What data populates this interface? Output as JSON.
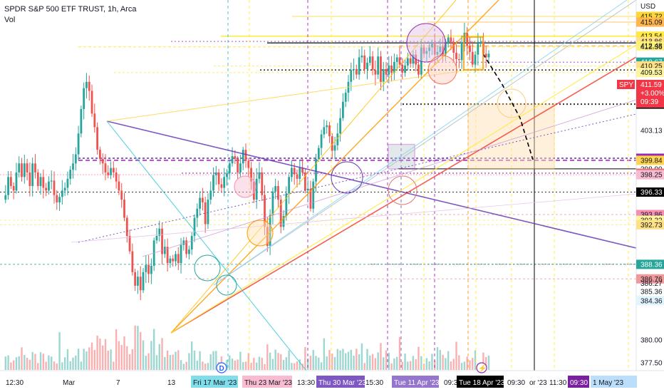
{
  "header": {
    "title": "SPDR S&P 500 ETF TRUST, 1h, Arca",
    "sub": "Vol"
  },
  "currency": "USD",
  "last_price": {
    "ticker": "SPY",
    "price": "411.59",
    "change": "+3.00%",
    "countdown": "09:39",
    "color": "#f23645"
  },
  "price_scale": {
    "ticks": [
      {
        "text": "415.72",
        "bg": "#fdd835",
        "color": "#131722"
      },
      {
        "text": "415.09",
        "bg": "#ffb74d",
        "color": "#131722"
      },
      {
        "text": "413.54",
        "bg": "#ffeb3b",
        "color": "#131722"
      },
      {
        "text": "412.96",
        "bg": "#ffe082",
        "color": "#131722"
      },
      {
        "text": "412.79",
        "bg": "#ffffff",
        "color": "#131722"
      },
      {
        "text": "412.48",
        "bg": "#fff176",
        "color": "#131722"
      },
      {
        "text": "412.36",
        "bg": "#ffffff",
        "color": "#131722"
      },
      {
        "text": "410.67",
        "bg": "#26a69a",
        "color": "#ffffff"
      },
      {
        "text": "410.25",
        "bg": "#ffe082",
        "color": "#131722"
      },
      {
        "text": "409.81",
        "bg": "#ffffff",
        "color": "#131722"
      },
      {
        "text": "409.53",
        "bg": "#fff59d",
        "color": "#131722"
      },
      {
        "text": "406.23",
        "bg": "#e1bee7",
        "color": "#131722"
      },
      {
        "text": "406.04",
        "bg": "#000000",
        "color": "#ffffff"
      },
      {
        "text": "403.13",
        "bg": "#ffffff",
        "color": "#131722"
      },
      {
        "text": "400.07",
        "bg": "#9c27b0",
        "color": "#ffffff"
      },
      {
        "text": "399.84",
        "bg": "#ffd54f",
        "color": "#131722"
      },
      {
        "text": "398.90",
        "bg": "#ffffff",
        "color": "#131722"
      },
      {
        "text": "398.42",
        "bg": "#e57373",
        "color": "#ffffff"
      },
      {
        "text": "398.25",
        "bg": "#f8bbd0",
        "color": "#131722"
      },
      {
        "text": "396.33",
        "bg": "#000000",
        "color": "#ffffff"
      },
      {
        "text": "393.86",
        "bg": "#f48fb1",
        "color": "#131722"
      },
      {
        "text": "393.22",
        "bg": "#fff59d",
        "color": "#131722"
      },
      {
        "text": "392.73",
        "bg": "#ffe082",
        "color": "#131722"
      },
      {
        "text": "388.37",
        "bg": "#ffffff",
        "color": "#131722"
      },
      {
        "text": "388.36",
        "bg": "#26a69a",
        "color": "#ffffff"
      },
      {
        "text": "386.76",
        "bg": "#ef9a9a",
        "color": "#131722"
      },
      {
        "text": "386.27",
        "bg": "#ffffff",
        "color": "#131722"
      },
      {
        "text": "385.36",
        "bg": "#ffffff",
        "color": "#131722"
      },
      {
        "text": "384.36",
        "bg": "#e1f5fe",
        "color": "#131722"
      },
      {
        "text": "380.00",
        "bg": "#ffffff",
        "color": "#131722"
      },
      {
        "text": "377.50",
        "bg": "#ffffff",
        "color": "#131722"
      }
    ]
  },
  "time_axis": [
    {
      "text": "12:30",
      "bg": "",
      "color": "#131722"
    },
    {
      "text": "Mar",
      "bg": "",
      "color": "#131722"
    },
    {
      "text": "7",
      "bg": "",
      "color": "#131722"
    },
    {
      "text": "13",
      "bg": "",
      "color": "#131722"
    },
    {
      "text": "Fri 17 Mar '23",
      "bg": "#80deea",
      "color": "#131722"
    },
    {
      "text": "Thu 23 Mar '23",
      "bg": "#f8bbd0",
      "color": "#131722"
    },
    {
      "text": "13:30",
      "bg": "",
      "color": "#131722"
    },
    {
      "text": "Thu 30 Mar '23",
      "bg": "#7e57c2",
      "color": "#ffffff"
    },
    {
      "text": "15:30",
      "bg": "",
      "color": "#131722"
    },
    {
      "text": "Tue 11 Apr '23",
      "bg": "#9575cd",
      "color": "#ffffff"
    },
    {
      "text": "09:30",
      "bg": "",
      "color": "#131722"
    },
    {
      "text": "Tue 18 Apr '23",
      "bg": "#000000",
      "color": "#ffffff"
    },
    {
      "text": "09:30",
      "bg": "",
      "color": "#131722"
    },
    {
      "text": "or '23",
      "bg": "",
      "color": "#131722"
    },
    {
      "text": "11:30",
      "bg": "",
      "color": "#131722"
    },
    {
      "text": "09:30",
      "bg": "#7b1fa2",
      "color": "#ffffff"
    },
    {
      "text": "1 May '23",
      "bg": "#bbdefb",
      "color": "#131722"
    }
  ],
  "markers": {
    "dividend": "D",
    "event": "⚡"
  },
  "colors": {
    "up": "#26a69a",
    "down": "#ef5350",
    "volume_up": "#26a69a",
    "volume_down": "#ef5350"
  },
  "chart_data": {
    "type": "candlestick",
    "symbol": "SPY",
    "interval": "1h",
    "ylim": [
      376.5,
      417.4
    ],
    "close_path": [
      395.5,
      396,
      398,
      397,
      396.5,
      398.5,
      399.5,
      398,
      399.5,
      398.5,
      397,
      399.5,
      398.5,
      397,
      398,
      396.8,
      396.5,
      397.5,
      397.6,
      396,
      395.2,
      395.8,
      396.5,
      396.8,
      397.8,
      398.8,
      399.5,
      400.5,
      402.8,
      405.5,
      407.8,
      408.5,
      407.5,
      405,
      403.5,
      401,
      400,
      399.5,
      398.5,
      398.2,
      399,
      398.5,
      397.5,
      396.5,
      395.5,
      393.5,
      391.5,
      389.8,
      387.5,
      386,
      387,
      385.5,
      387.5,
      388.3,
      387.3,
      388.2,
      391,
      391.5,
      392.3,
      389.5,
      390.3,
      388.5,
      389,
      388.7,
      389.5,
      388.5,
      390.5,
      391,
      389.5,
      390,
      391.5,
      393.5,
      394.5,
      395.7,
      395.2,
      392.8,
      395.5,
      396.5,
      398.2,
      398.5,
      397.2,
      396.8,
      398,
      398.4,
      399.5,
      400.3,
      400,
      398.5,
      399.5,
      401,
      399.8,
      399,
      397.5,
      395.5,
      397.8,
      398.5,
      396,
      392.5,
      390.4,
      393.8,
      396.4,
      397,
      395.5,
      392.5,
      393.7,
      396.2,
      398,
      399,
      398.3,
      397.8,
      399,
      398.5,
      396.5,
      396.7,
      394.5,
      397.5,
      400,
      401.2,
      402.7,
      403.5,
      403.7,
      402.5,
      400.9,
      401.5,
      402.8,
      404.5,
      406.3,
      407.3,
      408.5,
      409.8,
      409.9,
      409.3,
      411.2,
      411.4,
      409.9,
      410.6,
      411.3,
      409.8,
      409.3,
      411.3,
      408.5,
      409.9,
      409.3,
      410.3,
      409.5,
      410.7,
      411.2,
      410.4,
      409.5,
      410.3,
      411.1,
      410.5,
      411.5,
      410.4,
      409.3,
      412.3,
      411.6,
      411.9,
      412.3,
      412.8,
      411.5,
      411.8,
      412.4,
      411.5,
      412.7,
      413.4,
      412.9,
      411.7,
      411,
      410.9,
      412.8,
      413.9,
      412.5,
      411.8,
      410.4,
      411.5,
      412.7,
      412.9,
      411.6,
      411.2,
      411.6
    ],
    "projection": [
      411.59,
      408.2,
      404.5,
      399.9
    ],
    "reference_levels": [
      415.72,
      415.09,
      413.54,
      412.96,
      412.79,
      412.48,
      412.36,
      410.67,
      410.25,
      409.81,
      409.53,
      406.23,
      406.04,
      403.13,
      400.07,
      399.84,
      398.9,
      398.42,
      398.25,
      396.33,
      393.86,
      393.22,
      392.73,
      388.37,
      388.36,
      386.76,
      386.27,
      385.36,
      384.36
    ],
    "last": 411.59,
    "change_pct": 3.0
  }
}
